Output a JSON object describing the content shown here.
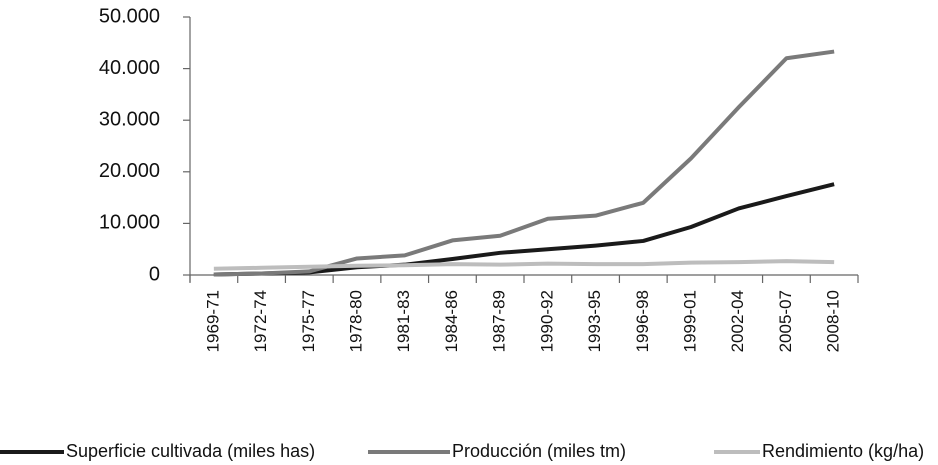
{
  "chart_data": {
    "type": "line",
    "categories": [
      "1969-71",
      "1972-74",
      "1975-77",
      "1978-80",
      "1981-83",
      "1984-86",
      "1987-89",
      "1990-92",
      "1993-95",
      "1996-98",
      "1999-01",
      "2002-04",
      "2005-07",
      "2008-10"
    ],
    "series": [
      {
        "name": "Superficie cultivada (miles has)",
        "color": "#1a1a1a",
        "values": [
          100,
          300,
          500,
          1500,
          2000,
          3100,
          4300,
          5000,
          5700,
          6600,
          9300,
          12900,
          15300,
          17600
        ]
      },
      {
        "name": "Producción (miles tm)",
        "color": "#7a7a7a",
        "values": [
          100,
          300,
          700,
          3200,
          3800,
          6700,
          7600,
          10900,
          11500,
          14000,
          22600,
          32500,
          42000,
          43300
        ]
      },
      {
        "name": "Rendimiento (kg/ha)",
        "color": "#bdbdbd",
        "values": [
          1200,
          1400,
          1600,
          1800,
          1900,
          2100,
          2000,
          2200,
          2100,
          2100,
          2400,
          2500,
          2700,
          2500
        ]
      }
    ],
    "ylim": [
      0,
      50000
    ],
    "yticks": [
      0,
      {
        "value": 10000,
        "label": "10.000"
      },
      {
        "value": 20000,
        "label": "20.000"
      },
      {
        "value": 30000,
        "label": "30.000"
      },
      {
        "value": 40000,
        "label": "40.000"
      },
      {
        "value": 50000,
        "label": "50.000"
      }
    ],
    "legend": "bottom"
  }
}
